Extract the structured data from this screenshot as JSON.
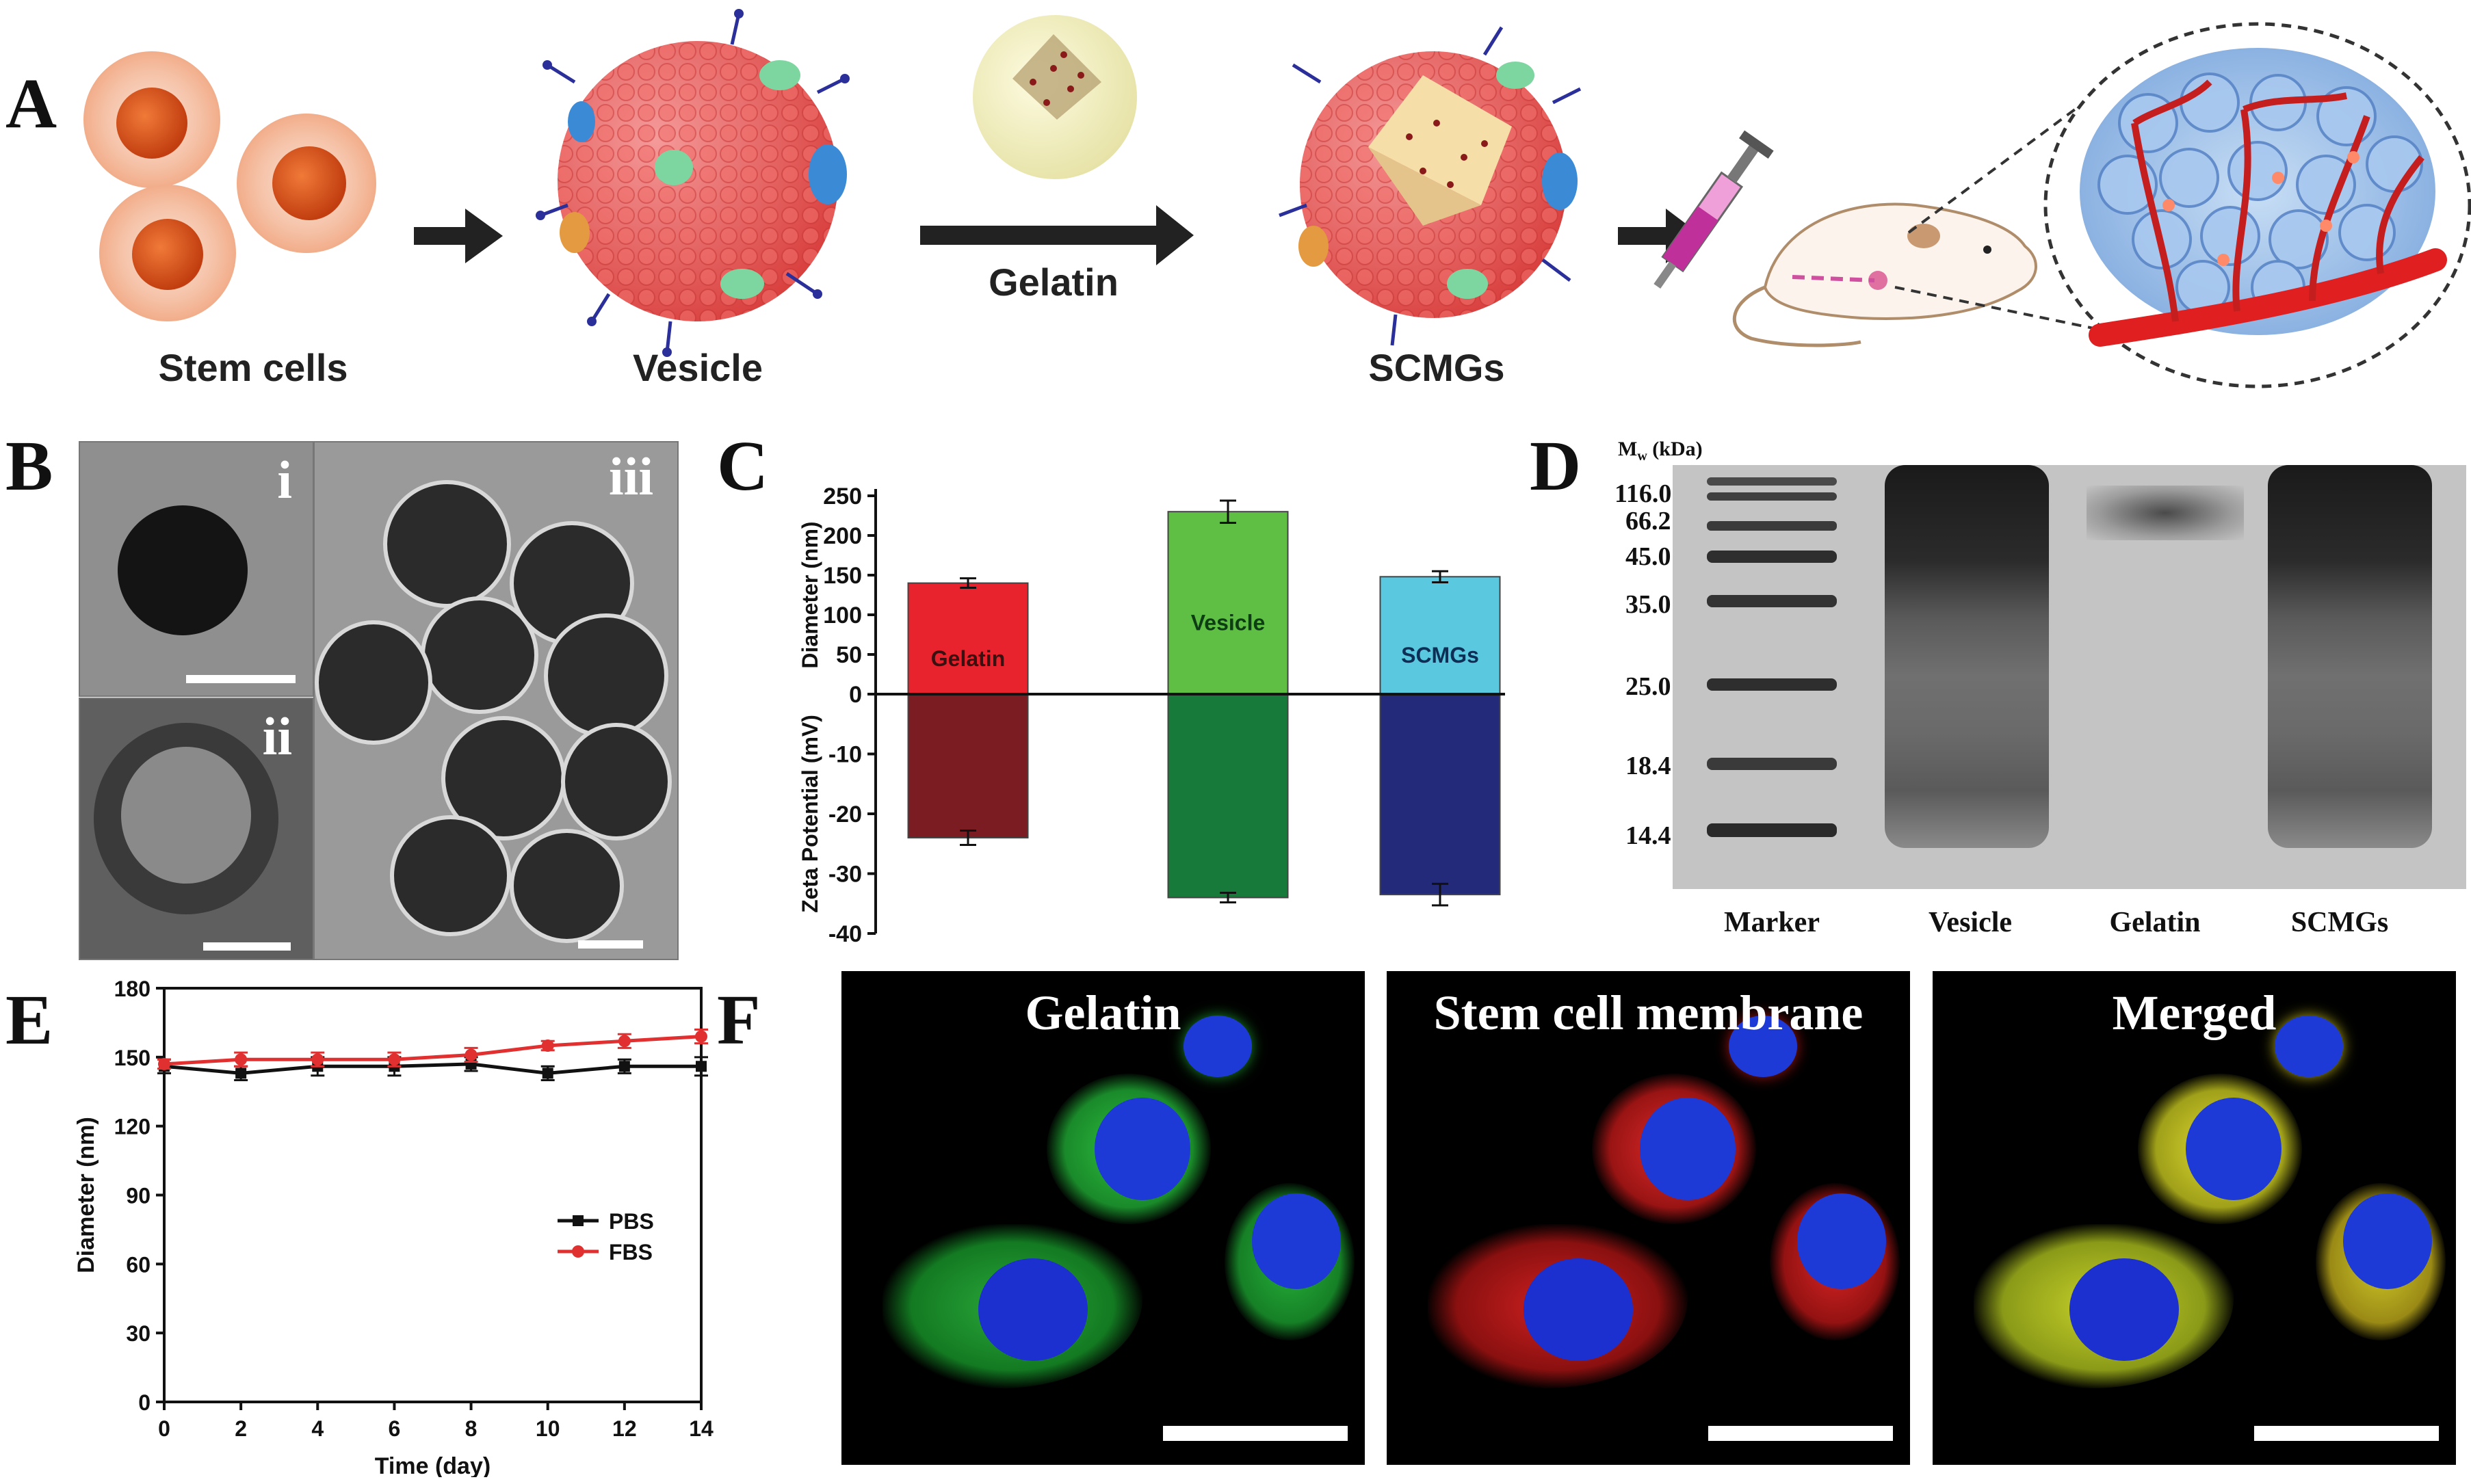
{
  "panels": {
    "a": "A",
    "b": "B",
    "c": "C",
    "d": "D",
    "e": "E",
    "f": "F"
  },
  "panel_a": {
    "stem_cells": "Stem cells",
    "vesicle": "Vesicle",
    "gelatin": "Gelatin",
    "scmgs": "SCMGs"
  },
  "panel_b": {
    "i": "i",
    "ii": "ii",
    "iii": "iii"
  },
  "panel_d": {
    "mw_label": "M",
    "mw_sub": "w",
    "mw_unit": " (kDa)",
    "markers": [
      "116.0",
      "66.2",
      "45.0",
      "35.0",
      "25.0",
      "18.4",
      "14.4"
    ],
    "lanes": [
      "Marker",
      "Vesicle",
      "Gelatin",
      "SCMGs"
    ]
  },
  "panel_f": {
    "titles": [
      "Gelatin",
      "Stem cell membrane",
      "Merged"
    ]
  },
  "colors": {
    "gelatin_bar": "#e8232d",
    "gelatin_zeta": "#7a1c22",
    "vesicle_bar": "#5fbf45",
    "vesicle_zeta": "#187a3a",
    "scmgs_bar": "#5ac8df",
    "scmgs_zeta": "#232a7a",
    "pbs": "#111111",
    "fbs": "#e03030"
  },
  "chart_data": [
    {
      "type": "bar",
      "panel": "C",
      "categories": [
        "Gelatin",
        "Vesicle",
        "SCMGs"
      ],
      "series": [
        {
          "name": "Diameter (nm)",
          "values": [
            140,
            230,
            148
          ],
          "errors": [
            6,
            14,
            7
          ]
        },
        {
          "name": "Zeta Potential (mV)",
          "values": [
            -24,
            -34,
            -33.5
          ],
          "errors": [
            1.2,
            0.8,
            1.8
          ]
        }
      ],
      "ylabel_top": "Diameter (nm)",
      "ylabel_bottom": "Zeta Potential (mV)",
      "top_ticks": [
        0,
        50,
        100,
        150,
        200,
        250
      ],
      "bottom_ticks": [
        -10,
        -20,
        -30,
        -40
      ],
      "ylim_top": [
        0,
        250
      ],
      "ylim_bottom": [
        -40,
        0
      ]
    },
    {
      "type": "line",
      "panel": "E",
      "x": [
        0,
        2,
        4,
        6,
        8,
        10,
        12,
        14
      ],
      "series": [
        {
          "name": "PBS",
          "values": [
            146,
            143,
            146,
            146,
            147,
            143,
            146,
            146
          ],
          "errors": [
            3,
            3,
            4,
            4,
            3,
            3,
            3,
            4
          ]
        },
        {
          "name": "FBS",
          "values": [
            147,
            149,
            149,
            149,
            151,
            155,
            157,
            159
          ],
          "errors": [
            2,
            3,
            3,
            3,
            3,
            2,
            3,
            3
          ]
        }
      ],
      "xlabel": "Time (day)",
      "ylabel": "Diameter (nm)",
      "xlim": [
        0,
        14
      ],
      "ylim": [
        0,
        180
      ],
      "xticks": [
        0,
        2,
        4,
        6,
        8,
        10,
        12,
        14
      ],
      "yticks": [
        0,
        30,
        60,
        90,
        120,
        150,
        180
      ],
      "legend": "center-right"
    }
  ]
}
